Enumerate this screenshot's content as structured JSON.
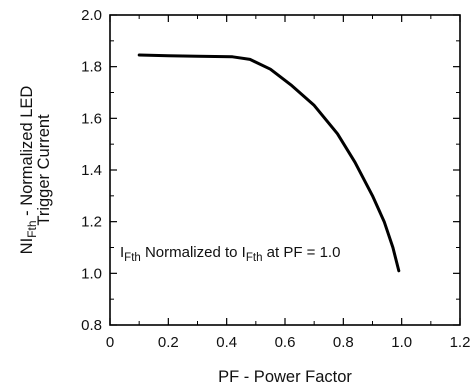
{
  "chart_data": {
    "type": "line",
    "title": "",
    "xlabel": "PF - Power Factor",
    "ylabel_line1_parts": [
      "NI",
      "Fth",
      " - Normalized LED"
    ],
    "ylabel_line2": "Trigger Current",
    "annotation_parts": [
      "I",
      "Fth",
      " Normalized to I",
      "Fth",
      " at PF = 1.0"
    ],
    "xlim": [
      0,
      1.2
    ],
    "ylim": [
      0.8,
      2.0
    ],
    "x_ticks": [
      0,
      0.2,
      0.4,
      0.6,
      0.8,
      1.0,
      1.2
    ],
    "x_tick_labels": [
      "0",
      "0.2",
      "0.4",
      "0.6",
      "0.8",
      "1.0",
      "1.2"
    ],
    "y_ticks": [
      0.8,
      1.0,
      1.2,
      1.4,
      1.6,
      1.8,
      2.0
    ],
    "y_tick_labels": [
      "0.8",
      "1.0",
      "1.2",
      "1.4",
      "1.6",
      "1.8",
      "2.0"
    ],
    "grid": false,
    "minor_ticks": true,
    "series": [
      {
        "x": [
          0.1,
          0.2,
          0.3,
          0.42,
          0.48,
          0.55,
          0.62,
          0.7,
          0.78,
          0.84,
          0.9,
          0.94,
          0.97,
          0.99
        ],
        "y": [
          1.845,
          1.842,
          1.84,
          1.838,
          1.828,
          1.79,
          1.73,
          1.65,
          1.54,
          1.43,
          1.3,
          1.2,
          1.1,
          1.01
        ],
        "color": "#000000"
      }
    ]
  }
}
